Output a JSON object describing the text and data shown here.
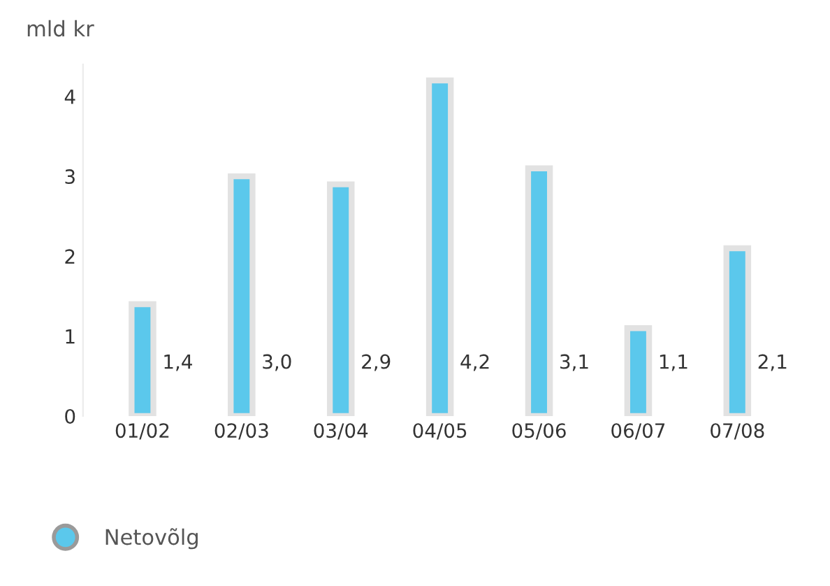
{
  "chart_data": {
    "type": "bar",
    "ylabel": "mld kr",
    "categories": [
      "01/02",
      "02/03",
      "03/04",
      "04/05",
      "05/06",
      "06/07",
      "07/08"
    ],
    "series": [
      {
        "name": "Netovõlg",
        "color": "#5bc8ec",
        "values": [
          1.4,
          3.0,
          2.9,
          4.2,
          3.1,
          1.1,
          2.1
        ]
      }
    ],
    "value_labels": [
      "1,4",
      "3,0",
      "2,9",
      "4,2",
      "3,1",
      "1,1",
      "2,1"
    ],
    "ylim": [
      0,
      4.4
    ],
    "yticks": [
      0,
      1,
      2,
      3,
      4
    ],
    "grid": false,
    "legend": "bottom left"
  }
}
